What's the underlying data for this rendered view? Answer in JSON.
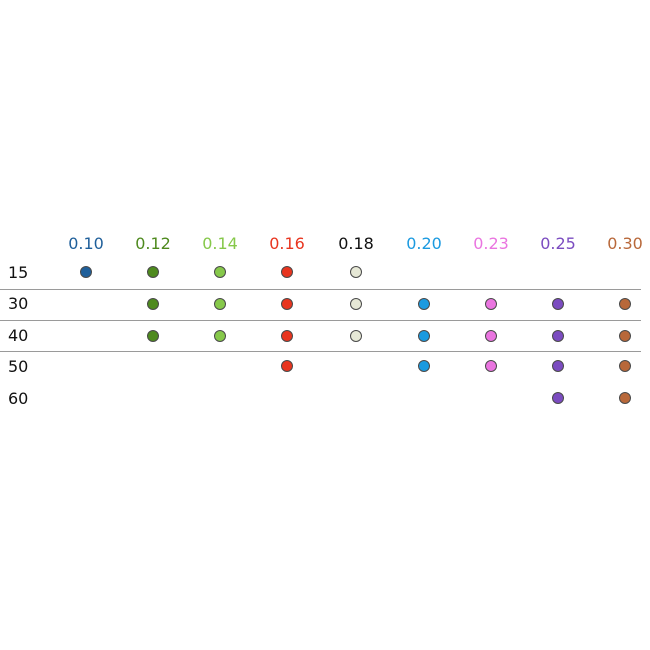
{
  "columns": [
    {
      "label": "0.10",
      "color": "#1f5f9a"
    },
    {
      "label": "0.12",
      "color": "#4e8a1e"
    },
    {
      "label": "0.14",
      "color": "#86c84a"
    },
    {
      "label": "0.16",
      "color": "#e8351f"
    },
    {
      "label": "0.18",
      "color": "#111111",
      "dot_color": "#e6e8d6"
    },
    {
      "label": "0.20",
      "color": "#1b9ae0"
    },
    {
      "label": "0.23",
      "color": "#ea75e0"
    },
    {
      "label": "0.25",
      "color": "#7b4cc0"
    },
    {
      "label": "0.30",
      "color": "#b8683a"
    }
  ],
  "rows": [
    {
      "label": "15",
      "available": [
        "0.10",
        "0.12",
        "0.14",
        "0.16",
        "0.18"
      ]
    },
    {
      "label": "30",
      "available": [
        "0.12",
        "0.14",
        "0.16",
        "0.18",
        "0.20",
        "0.23",
        "0.25",
        "0.30"
      ]
    },
    {
      "label": "40",
      "available": [
        "0.12",
        "0.14",
        "0.16",
        "0.18",
        "0.20",
        "0.23",
        "0.25",
        "0.30"
      ]
    },
    {
      "label": "50",
      "available": [
        "0.16",
        "0.20",
        "0.23",
        "0.25",
        "0.30"
      ]
    },
    {
      "label": "60",
      "available": [
        "0.25",
        "0.30"
      ]
    }
  ]
}
